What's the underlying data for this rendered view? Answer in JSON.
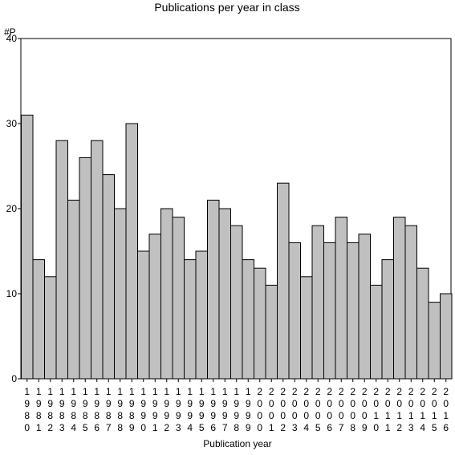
{
  "chart_data": {
    "type": "bar",
    "title": "Publications per year in class",
    "ylabel": "#P",
    "xlabel": "Publication year",
    "ylim": [
      0,
      40
    ],
    "yticks": [
      0,
      10,
      20,
      30,
      40
    ],
    "grid": false,
    "bar_color": "#c0c0c0",
    "categories": [
      "1980",
      "1981",
      "1982",
      "1983",
      "1984",
      "1985",
      "1986",
      "1987",
      "1988",
      "1989",
      "1990",
      "1991",
      "1992",
      "1993",
      "1994",
      "1995",
      "1996",
      "1997",
      "1998",
      "1999",
      "2000",
      "2001",
      "2002",
      "2003",
      "2004",
      "2005",
      "2006",
      "2007",
      "2008",
      "2009",
      "2010",
      "2011",
      "2012",
      "2013",
      "2014",
      "2015",
      "2016"
    ],
    "values": [
      31,
      14,
      12,
      28,
      21,
      26,
      28,
      24,
      20,
      30,
      15,
      17,
      20,
      19,
      14,
      15,
      21,
      20,
      18,
      14,
      13,
      11,
      23,
      16,
      12,
      18,
      16,
      19,
      16,
      17,
      11,
      14,
      19,
      18,
      13,
      9,
      10
    ]
  }
}
